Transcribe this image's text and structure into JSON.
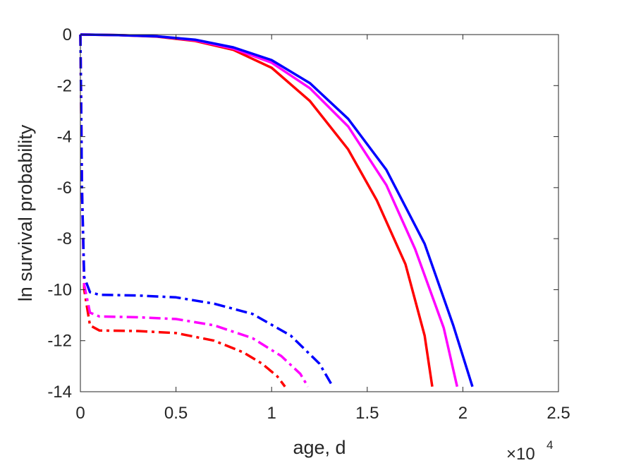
{
  "chart_data": {
    "type": "line",
    "xlabel": "age, d",
    "ylabel": "ln survival probability",
    "x_multiplier": "×10",
    "x_multiplier_exp": "4",
    "xlim": [
      0,
      2.5
    ],
    "ylim": [
      -14,
      0
    ],
    "xticks": [
      "0",
      "0.5",
      "1",
      "1.5",
      "2",
      "2.5"
    ],
    "yticks": [
      "0",
      "-2",
      "-4",
      "-6",
      "-8",
      "-10",
      "-12",
      "-14"
    ],
    "grid": false,
    "legend": "none",
    "series": [
      {
        "style": "solid",
        "color": "#ff0000",
        "points": [
          [
            0,
            0
          ],
          [
            0.2,
            -0.02
          ],
          [
            0.4,
            -0.08
          ],
          [
            0.6,
            -0.25
          ],
          [
            0.8,
            -0.6
          ],
          [
            1.0,
            -1.3
          ],
          [
            1.2,
            -2.6
          ],
          [
            1.4,
            -4.5
          ],
          [
            1.55,
            -6.5
          ],
          [
            1.7,
            -9.0
          ],
          [
            1.8,
            -11.8
          ],
          [
            1.84,
            -13.8
          ]
        ]
      },
      {
        "style": "solid",
        "color": "#ff00ff",
        "points": [
          [
            0,
            0
          ],
          [
            0.2,
            -0.02
          ],
          [
            0.4,
            -0.07
          ],
          [
            0.6,
            -0.22
          ],
          [
            0.8,
            -0.55
          ],
          [
            1.0,
            -1.1
          ],
          [
            1.2,
            -2.1
          ],
          [
            1.4,
            -3.6
          ],
          [
            1.6,
            -5.9
          ],
          [
            1.75,
            -8.4
          ],
          [
            1.9,
            -11.5
          ],
          [
            1.97,
            -13.8
          ]
        ]
      },
      {
        "style": "solid",
        "color": "#0000ff",
        "points": [
          [
            0,
            0
          ],
          [
            0.2,
            -0.02
          ],
          [
            0.4,
            -0.07
          ],
          [
            0.6,
            -0.2
          ],
          [
            0.8,
            -0.5
          ],
          [
            1.0,
            -1.0
          ],
          [
            1.2,
            -1.9
          ],
          [
            1.4,
            -3.3
          ],
          [
            1.6,
            -5.3
          ],
          [
            1.8,
            -8.2
          ],
          [
            1.95,
            -11.4
          ],
          [
            2.05,
            -13.8
          ]
        ]
      },
      {
        "style": "dashdot",
        "color": "#ff0000",
        "points": [
          [
            0,
            0
          ],
          [
            0.003,
            -2
          ],
          [
            0.008,
            -6
          ],
          [
            0.02,
            -10
          ],
          [
            0.05,
            -11.4
          ],
          [
            0.1,
            -11.6
          ],
          [
            0.3,
            -11.62
          ],
          [
            0.5,
            -11.7
          ],
          [
            0.7,
            -12.0
          ],
          [
            0.85,
            -12.45
          ],
          [
            0.95,
            -12.9
          ],
          [
            1.03,
            -13.4
          ],
          [
            1.07,
            -13.8
          ]
        ]
      },
      {
        "style": "dashdot",
        "color": "#ff00ff",
        "points": [
          [
            0,
            0
          ],
          [
            0.003,
            -2
          ],
          [
            0.008,
            -6
          ],
          [
            0.02,
            -9.8
          ],
          [
            0.05,
            -10.9
          ],
          [
            0.1,
            -11.05
          ],
          [
            0.3,
            -11.08
          ],
          [
            0.5,
            -11.15
          ],
          [
            0.7,
            -11.4
          ],
          [
            0.9,
            -11.9
          ],
          [
            1.05,
            -12.6
          ],
          [
            1.15,
            -13.3
          ],
          [
            1.19,
            -13.8
          ]
        ]
      },
      {
        "style": "dashdot",
        "color": "#0000ff",
        "points": [
          [
            0,
            0
          ],
          [
            0.003,
            -2
          ],
          [
            0.008,
            -6
          ],
          [
            0.02,
            -9.5
          ],
          [
            0.05,
            -10.1
          ],
          [
            0.1,
            -10.2
          ],
          [
            0.3,
            -10.23
          ],
          [
            0.5,
            -10.3
          ],
          [
            0.7,
            -10.55
          ],
          [
            0.9,
            -10.95
          ],
          [
            1.1,
            -11.8
          ],
          [
            1.25,
            -12.9
          ],
          [
            1.32,
            -13.8
          ]
        ]
      }
    ]
  }
}
